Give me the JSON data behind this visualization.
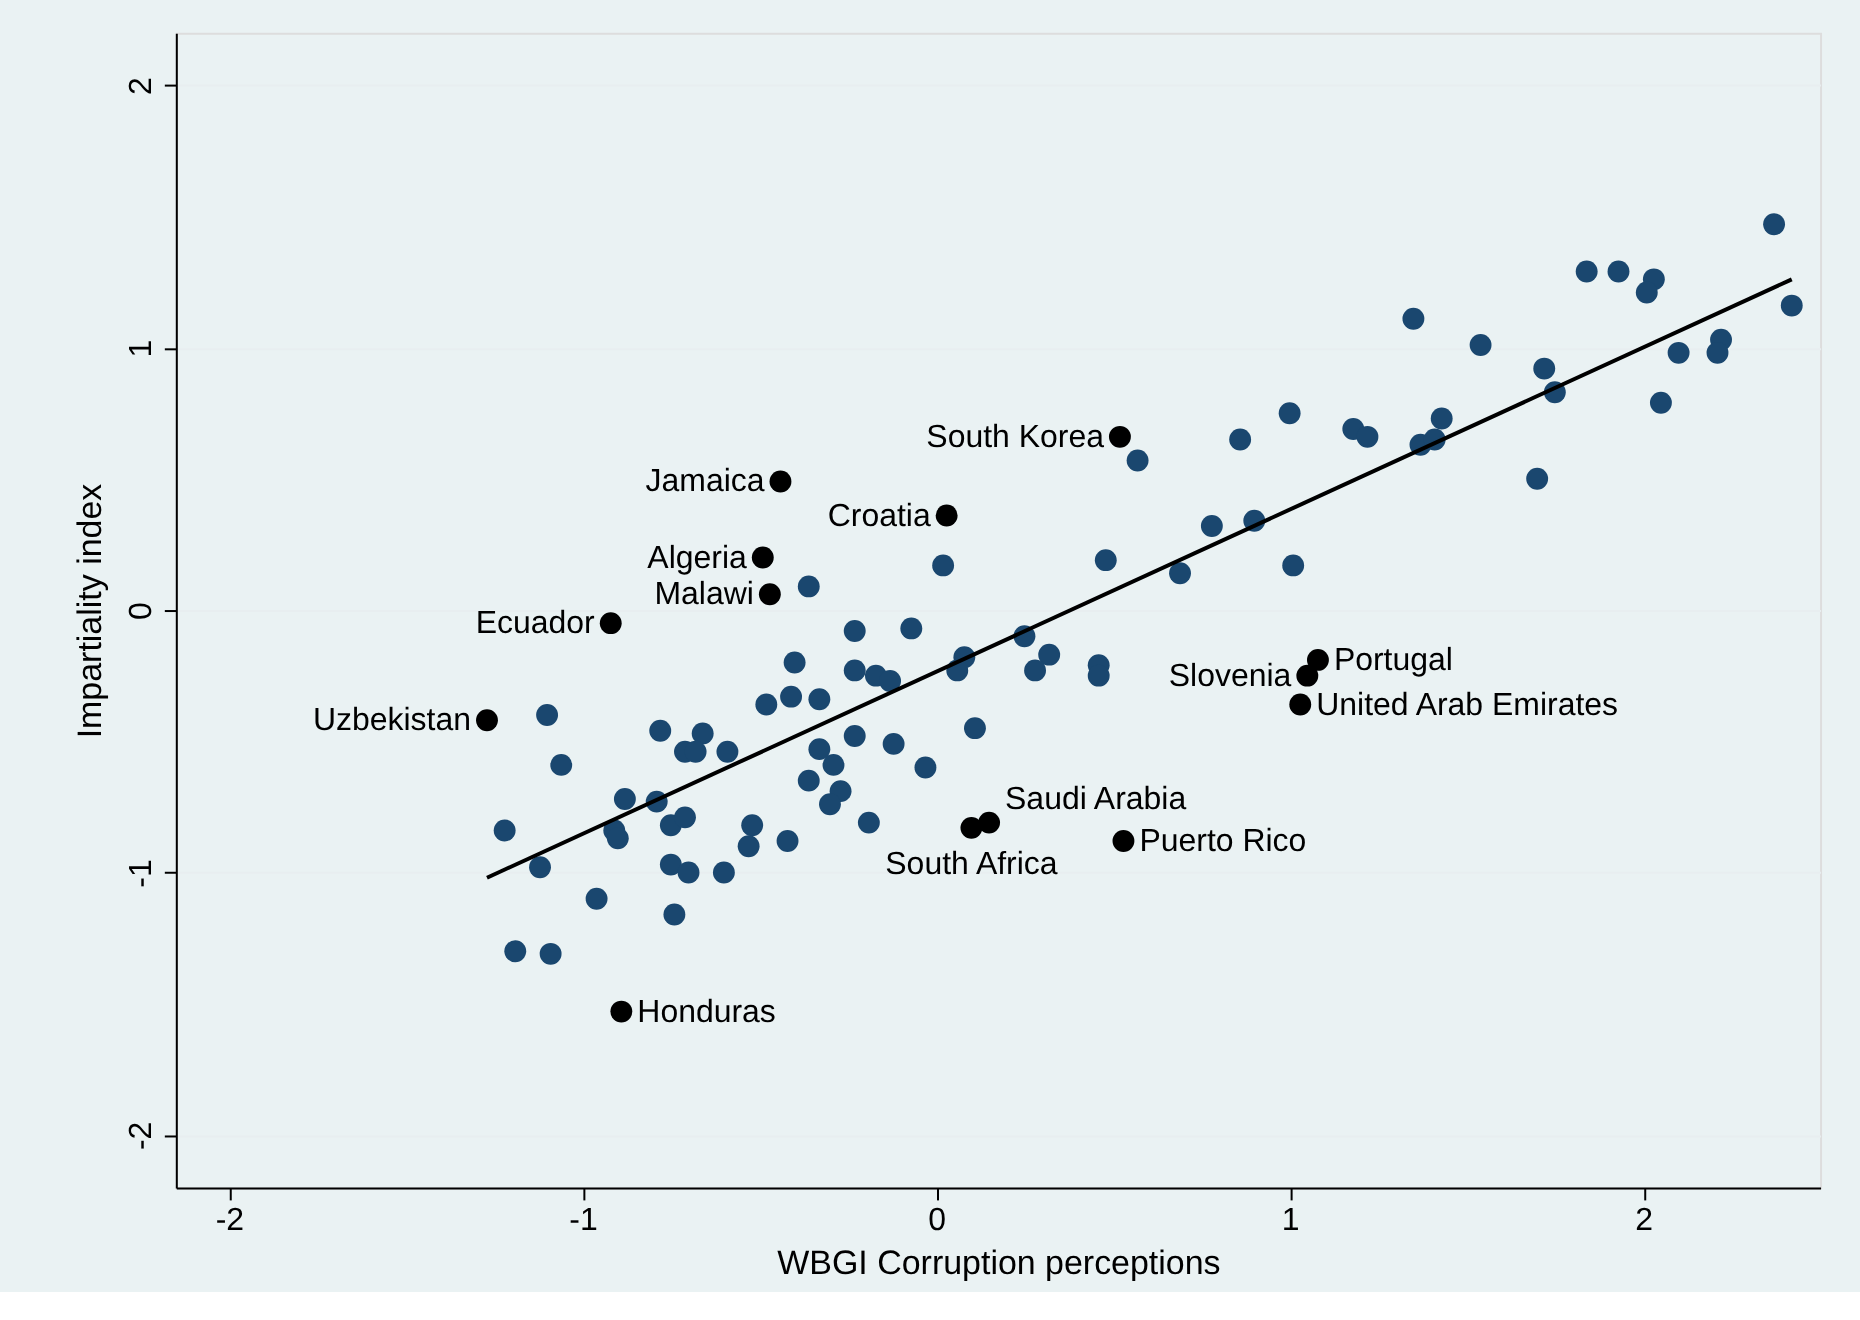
{
  "chart_data": {
    "type": "scatter",
    "xlabel": "WBGI Corruption perceptions",
    "ylabel": "Impartiality index",
    "xlim": [
      -2.15,
      2.5
    ],
    "ylim": [
      -2.2,
      2.2
    ],
    "xticks": [
      -2,
      -1,
      0,
      1,
      2
    ],
    "yticks": [
      -2,
      -1,
      0,
      1,
      2
    ],
    "grid": "y",
    "marker": "circle",
    "series": [
      {
        "color": "#1a476f",
        "x": [
          2.37,
          1.84,
          1.93,
          2.03,
          2.01,
          2.42,
          1.35,
          1.54,
          1.72,
          1.75,
          2.1,
          2.22,
          2.21,
          2.05,
          1.7,
          1.0,
          0.86,
          0.57,
          1.18,
          1.22,
          1.37,
          1.41,
          1.43,
          0.78,
          0.9,
          1.01,
          0.69,
          0.48,
          0.02,
          -0.07,
          0.25,
          0.32,
          0.08,
          -1.1,
          -1.06,
          -1.22,
          -1.12,
          -1.19,
          -1.09,
          -0.96,
          -0.88,
          -0.91,
          -0.9,
          -0.79,
          -0.78,
          -0.71,
          -0.66,
          -0.68,
          -0.75,
          -0.71,
          -0.75,
          -0.7,
          -0.74,
          -0.6,
          -0.59,
          -0.52,
          -0.53,
          -0.42,
          -0.48,
          -0.41,
          -0.33,
          -0.4,
          -0.23,
          -0.23,
          -0.17,
          -0.13,
          0.06,
          0.28,
          -0.33,
          -0.29,
          -0.36,
          -0.27,
          -0.3,
          -0.23,
          -0.12,
          -0.03,
          -0.19,
          0.11,
          -0.36,
          0.46,
          0.46
        ],
        "values": [
          1.47,
          1.29,
          1.29,
          1.26,
          1.21,
          1.16,
          1.11,
          1.01,
          0.92,
          0.83,
          0.98,
          1.03,
          0.98,
          0.79,
          0.5,
          0.75,
          0.65,
          0.57,
          0.69,
          0.66,
          0.63,
          0.65,
          0.73,
          0.32,
          0.34,
          0.17,
          0.14,
          0.19,
          0.17,
          -0.07,
          -0.1,
          -0.17,
          -0.18,
          -0.4,
          -0.59,
          -0.84,
          -0.98,
          -1.3,
          -1.31,
          -1.1,
          -0.72,
          -0.84,
          -0.87,
          -0.73,
          -0.46,
          -0.54,
          -0.47,
          -0.54,
          -0.82,
          -0.79,
          -0.97,
          -1.0,
          -1.16,
          -1.0,
          -0.54,
          -0.82,
          -0.9,
          -0.88,
          -0.36,
          -0.33,
          -0.34,
          -0.2,
          -0.08,
          -0.23,
          -0.25,
          -0.27,
          -0.23,
          -0.23,
          -0.53,
          -0.59,
          -0.65,
          -0.69,
          -0.74,
          -0.48,
          -0.51,
          -0.6,
          -0.81,
          -0.45,
          0.09,
          -0.21,
          -0.25
        ]
      },
      {
        "color": "#000000",
        "x": [
          -1.27,
          -0.92,
          -0.47,
          -0.49,
          -0.44,
          0.03,
          0.52,
          1.05,
          1.08,
          1.03,
          0.15,
          0.1,
          0.53,
          -0.89
        ],
        "values": [
          -0.42,
          -0.05,
          0.06,
          0.2,
          0.49,
          0.36,
          0.66,
          -0.25,
          -0.19,
          -0.36,
          -0.81,
          -0.83,
          -0.88,
          -1.53
        ]
      },
      {
        "type": "line",
        "color": "#000000",
        "line_style": "solid",
        "marker": "none",
        "x": [
          -1.27,
          2.42
        ],
        "values": [
          -1.02,
          1.26
        ]
      }
    ],
    "annotations": [
      {
        "text": "Uzbekistan",
        "x": -1.27,
        "y": -0.42
      },
      {
        "text": "Ecuador",
        "x": -0.92,
        "y": -0.05
      },
      {
        "text": "Malawi",
        "x": -0.47,
        "y": 0.06
      },
      {
        "text": "Algeria",
        "x": -0.49,
        "y": 0.2
      },
      {
        "text": "Jamaica",
        "x": -0.44,
        "y": 0.49
      },
      {
        "text": "Croatia",
        "x": 0.03,
        "y": 0.36
      },
      {
        "text": "South Korea",
        "x": 0.52,
        "y": 0.66
      },
      {
        "text": "Slovenia",
        "x": 1.05,
        "y": -0.25
      },
      {
        "text": "Portugal",
        "x": 1.08,
        "y": -0.19
      },
      {
        "text": "United Arab Emirates",
        "x": 1.03,
        "y": -0.36
      },
      {
        "text": "Saudi Arabia",
        "x": 0.15,
        "y": -0.81
      },
      {
        "text": "South Africa",
        "x": 0.1,
        "y": -0.83
      },
      {
        "text": "Puerto Rico",
        "x": 0.53,
        "y": -0.88
      },
      {
        "text": "Honduras",
        "x": -0.89,
        "y": -1.53
      }
    ]
  }
}
